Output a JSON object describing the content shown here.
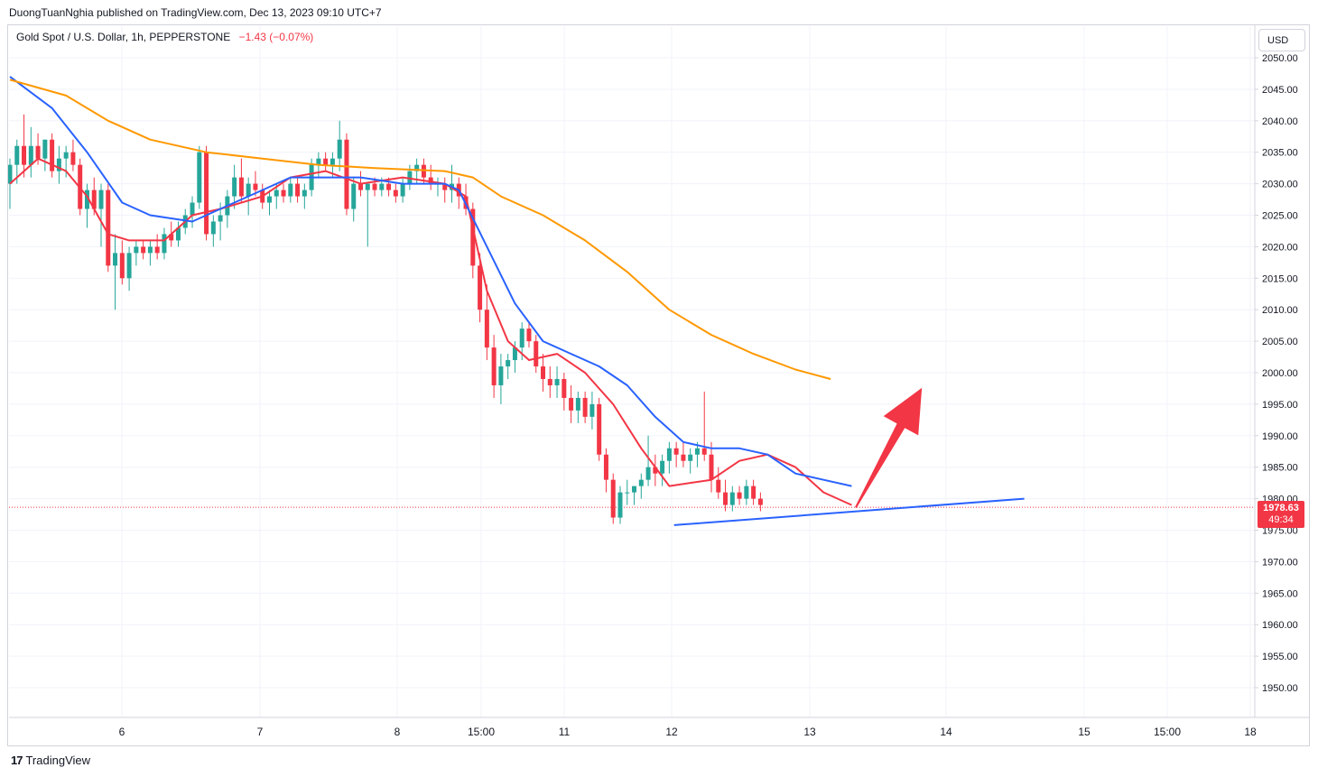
{
  "header": {
    "publisher": "DuongTuanNghia published on TradingView.com, Dec 13, 2023 09:10 UTC+7",
    "symbol": "Gold Spot / U.S. Dollar, 1h, PEPPERSTONE",
    "change": "−1.43 (−0.07%)"
  },
  "currency": "USD",
  "last_price": {
    "price": "1978.63",
    "countdown": "49:34"
  },
  "footer": {
    "brand": "TradingView",
    "logo": "17"
  },
  "colors": {
    "up": "#26a69a",
    "down": "#f23645",
    "ema_fast": "#f23645",
    "ema_mid": "#2962ff",
    "ema_slow": "#ff9800",
    "trendline": "#2962ff",
    "arrow": "#f23645",
    "grid": "#f0f3fa"
  },
  "chart_data": {
    "type": "candlestick",
    "y_ticks": [
      2050,
      2045,
      2040,
      2035,
      2030,
      2025,
      2020,
      2015,
      2010,
      2005,
      2000,
      1995,
      1990,
      1985,
      1980,
      1975,
      1970,
      1965,
      1960,
      1955,
      1950
    ],
    "ylim": [
      1945,
      2055
    ],
    "x_ticks": [
      "6",
      "7",
      "8",
      "15:00",
      "11",
      "12",
      "13",
      "14",
      "15",
      "15:00",
      "18"
    ],
    "last_price": 1978.63,
    "series": [
      {
        "name": "EMA fast",
        "points": [
          [
            0,
            2030
          ],
          [
            4,
            2034
          ],
          [
            8,
            2032
          ],
          [
            11,
            2028
          ],
          [
            14,
            2022
          ],
          [
            17,
            2021
          ],
          [
            22,
            2021
          ],
          [
            26,
            2025
          ],
          [
            30,
            2026
          ],
          [
            36,
            2028
          ],
          [
            40,
            2031
          ],
          [
            45,
            2032
          ],
          [
            50,
            2030
          ],
          [
            56,
            2031
          ],
          [
            62,
            2030
          ],
          [
            65,
            2028
          ],
          [
            68,
            2013
          ],
          [
            71,
            2005
          ],
          [
            74,
            2002
          ],
          [
            78,
            2003
          ],
          [
            82,
            2000
          ],
          [
            86,
            1995
          ],
          [
            90,
            1988
          ],
          [
            94,
            1982
          ],
          [
            100,
            1983
          ],
          [
            104,
            1986
          ],
          [
            108,
            1987
          ],
          [
            112,
            1985
          ],
          [
            116,
            1981
          ],
          [
            120,
            1979
          ]
        ]
      },
      {
        "name": "EMA mid",
        "points": [
          [
            0,
            2047
          ],
          [
            6,
            2042
          ],
          [
            11,
            2035
          ],
          [
            16,
            2027
          ],
          [
            20,
            2025
          ],
          [
            26,
            2024
          ],
          [
            30,
            2026
          ],
          [
            36,
            2029
          ],
          [
            40,
            2031
          ],
          [
            45,
            2031
          ],
          [
            50,
            2031
          ],
          [
            56,
            2030
          ],
          [
            62,
            2030
          ],
          [
            64,
            2029
          ],
          [
            68,
            2020
          ],
          [
            72,
            2011
          ],
          [
            76,
            2005
          ],
          [
            80,
            2003
          ],
          [
            84,
            2001
          ],
          [
            88,
            1998
          ],
          [
            92,
            1993
          ],
          [
            96,
            1989
          ],
          [
            100,
            1988
          ],
          [
            104,
            1988
          ],
          [
            108,
            1987
          ],
          [
            112,
            1984
          ],
          [
            116,
            1983
          ],
          [
            120,
            1982
          ]
        ]
      },
      {
        "name": "EMA slow",
        "points": [
          [
            0,
            2046.5
          ],
          [
            8,
            2044
          ],
          [
            14,
            2040
          ],
          [
            20,
            2037
          ],
          [
            28,
            2035
          ],
          [
            36,
            2034
          ],
          [
            44,
            2033
          ],
          [
            52,
            2032.5
          ],
          [
            62,
            2032
          ],
          [
            66,
            2031
          ],
          [
            70,
            2028
          ],
          [
            76,
            2025
          ],
          [
            82,
            2021
          ],
          [
            88,
            2016
          ],
          [
            94,
            2010
          ],
          [
            100,
            2006
          ],
          [
            106,
            2003
          ],
          [
            112,
            2000.5
          ],
          [
            117,
            1999
          ]
        ]
      }
    ],
    "candles": [
      [
        2030,
        2034,
        2026,
        2033
      ],
      [
        2033,
        2037,
        2030,
        2036
      ],
      [
        2036,
        2041,
        2031,
        2033
      ],
      [
        2033,
        2039,
        2031,
        2036
      ],
      [
        2036,
        2038,
        2033,
        2034
      ],
      [
        2034,
        2037,
        2032,
        2037
      ],
      [
        2037,
        2038,
        2031,
        2032
      ],
      [
        2032,
        2036,
        2030,
        2034
      ],
      [
        2034,
        2036,
        2031,
        2035
      ],
      [
        2035,
        2037,
        2032,
        2033
      ],
      [
        2033,
        2034,
        2025,
        2026
      ],
      [
        2026,
        2030,
        2023,
        2029
      ],
      [
        2029,
        2031,
        2025,
        2026
      ],
      [
        2026,
        2030,
        2020,
        2029
      ],
      [
        2029,
        2030,
        2016,
        2017
      ],
      [
        2017,
        2022,
        2010,
        2019
      ],
      [
        2019,
        2021,
        2014,
        2015
      ],
      [
        2015,
        2020,
        2013,
        2019
      ],
      [
        2019,
        2021,
        2017,
        2020
      ],
      [
        2020,
        2021,
        2018,
        2019
      ],
      [
        2019,
        2021,
        2017,
        2020
      ],
      [
        2020,
        2022,
        2018,
        2019
      ],
      [
        2019,
        2023,
        2018,
        2022
      ],
      [
        2022,
        2024,
        2020,
        2021
      ],
      [
        2021,
        2024,
        2020,
        2023
      ],
      [
        2023,
        2026,
        2022,
        2025
      ],
      [
        2025,
        2028,
        2023,
        2027
      ],
      [
        2027,
        2036,
        2026,
        2035
      ],
      [
        2035,
        2036,
        2021,
        2022
      ],
      [
        2022,
        2025,
        2020,
        2024
      ],
      [
        2024,
        2027,
        2021,
        2025
      ],
      [
        2025,
        2029,
        2023,
        2028
      ],
      [
        2028,
        2033,
        2026,
        2031
      ],
      [
        2031,
        2034,
        2027,
        2028
      ],
      [
        2028,
        2031,
        2025,
        2030
      ],
      [
        2030,
        2032,
        2028,
        2029
      ],
      [
        2029,
        2030,
        2026,
        2027
      ],
      [
        2027,
        2029,
        2025,
        2028
      ],
      [
        2028,
        2030,
        2026,
        2029
      ],
      [
        2029,
        2030,
        2027,
        2028
      ],
      [
        2028,
        2031,
        2027,
        2030
      ],
      [
        2030,
        2031,
        2027,
        2028
      ],
      [
        2028,
        2030,
        2026,
        2029
      ],
      [
        2029,
        2034,
        2028,
        2033
      ],
      [
        2033,
        2035,
        2031,
        2034
      ],
      [
        2034,
        2035,
        2032,
        2033
      ],
      [
        2033,
        2035,
        2031,
        2034
      ],
      [
        2034,
        2040,
        2032,
        2037
      ],
      [
        2037,
        2038,
        2025,
        2026
      ],
      [
        2026,
        2031,
        2024,
        2030
      ],
      [
        2030,
        2032,
        2028,
        2029
      ],
      [
        2029,
        2030,
        2020,
        2030
      ],
      [
        2030,
        2031,
        2028,
        2029
      ],
      [
        2029,
        2031,
        2028,
        2030
      ],
      [
        2030,
        2031,
        2028,
        2029
      ],
      [
        2029,
        2030,
        2027,
        2028
      ],
      [
        2028,
        2031,
        2027,
        2030
      ],
      [
        2030,
        2033,
        2029,
        2032
      ],
      [
        2032,
        2034,
        2030,
        2033
      ],
      [
        2033,
        2034,
        2030,
        2031
      ],
      [
        2031,
        2033,
        2029,
        2030
      ],
      [
        2030,
        2031,
        2028,
        2030
      ],
      [
        2030,
        2031,
        2027,
        2029
      ],
      [
        2029,
        2033,
        2027,
        2030
      ],
      [
        2030,
        2031,
        2026,
        2028
      ],
      [
        2028,
        2030,
        2025,
        2026
      ],
      [
        2026,
        2027,
        2015,
        2017
      ],
      [
        2017,
        2019,
        2008,
        2010
      ],
      [
        2010,
        2014,
        2002,
        2004
      ],
      [
        2004,
        2006,
        1996,
        1998
      ],
      [
        1998,
        2003,
        1995,
        2001
      ],
      [
        2001,
        2003,
        1999,
        2002
      ],
      [
        2002,
        2005,
        2000,
        2004
      ],
      [
        2004,
        2008,
        2002,
        2007
      ],
      [
        2007,
        2008,
        2004,
        2005
      ],
      [
        2005,
        2006,
        2000,
        2001
      ],
      [
        2001,
        2003,
        1997,
        1999
      ],
      [
        1999,
        2001,
        1996,
        1998
      ],
      [
        1998,
        2001,
        1996,
        1999
      ],
      [
        1999,
        2000,
        1994,
        1996
      ],
      [
        1996,
        1998,
        1992,
        1994
      ],
      [
        1994,
        1997,
        1992,
        1996
      ],
      [
        1996,
        1997,
        1992,
        1993
      ],
      [
        1993,
        1997,
        1991,
        1995
      ],
      [
        1995,
        1996,
        1986,
        1987
      ],
      [
        1987,
        1988,
        1981,
        1983
      ],
      [
        1983,
        1984,
        1976,
        1977
      ],
      [
        1977,
        1982,
        1976,
        1981
      ],
      [
        1981,
        1983,
        1979,
        1981
      ],
      [
        1981,
        1982,
        1979,
        1982
      ],
      [
        1982,
        1984,
        1980,
        1983
      ],
      [
        1983,
        1990,
        1982,
        1985
      ],
      [
        1985,
        1987,
        1982,
        1984
      ],
      [
        1984,
        1987,
        1982,
        1986
      ],
      [
        1986,
        1989,
        1984,
        1988
      ],
      [
        1988,
        1989,
        1985,
        1987
      ],
      [
        1987,
        1989,
        1985,
        1986
      ],
      [
        1986,
        1988,
        1984,
        1987
      ],
      [
        1987,
        1989,
        1985,
        1988
      ],
      [
        1988,
        1997,
        1986,
        1987
      ],
      [
        1987,
        1989,
        1981,
        1983
      ],
      [
        1983,
        1985,
        1980,
        1981
      ],
      [
        1981,
        1983,
        1978,
        1979
      ],
      [
        1979,
        1982,
        1978,
        1981
      ],
      [
        1981,
        1982,
        1979,
        1980
      ],
      [
        1980,
        1983,
        1979,
        1982
      ],
      [
        1982,
        1983,
        1979,
        1980
      ],
      [
        1980,
        1981,
        1978,
        1979
      ]
    ],
    "trendline": [
      [
        1.005,
        1975.8
      ],
      [
        1.535,
        1980
      ]
    ],
    "arrow": {
      "from": [
        1.28,
        1978.6
      ],
      "to": [
        1.38,
        1997.6
      ]
    }
  }
}
